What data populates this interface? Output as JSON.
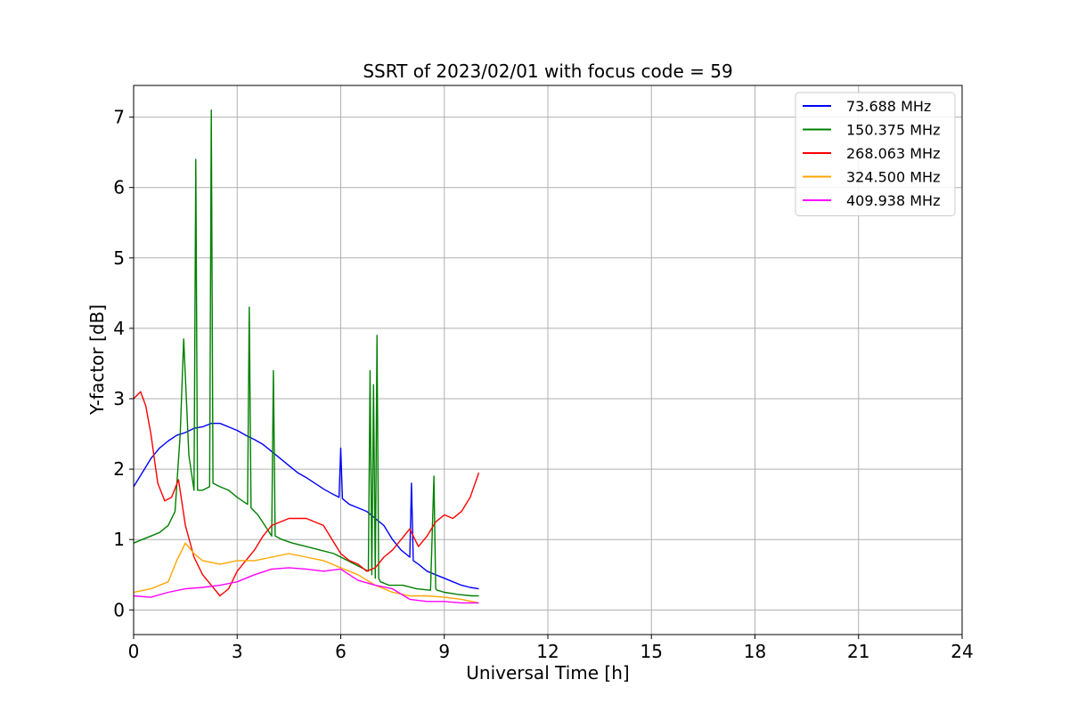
{
  "chart_data": {
    "type": "line",
    "title": "SSRT of 2023/02/01 with focus code = 59",
    "xlabel": "Universal Time [h]",
    "ylabel": "Y-factor [dB]",
    "xlim": [
      0,
      24
    ],
    "ylim": [
      -0.35,
      7.45
    ],
    "xticks": [
      0,
      3,
      6,
      9,
      12,
      15,
      18,
      21,
      24
    ],
    "xtick_labels": [
      "0",
      "3",
      "6",
      "9",
      "12",
      "15",
      "18",
      "21",
      "24"
    ],
    "yticks": [
      0,
      1,
      2,
      3,
      4,
      5,
      6,
      7
    ],
    "ytick_labels": [
      "0",
      "1",
      "2",
      "3",
      "4",
      "5",
      "6",
      "7"
    ],
    "grid": true,
    "legend_position": "top-right",
    "series": [
      {
        "name": " 73.688 MHz",
        "color": "#0000ff",
        "x": [
          0,
          0.25,
          0.5,
          0.75,
          1,
          1.25,
          1.5,
          1.75,
          2,
          2.25,
          2.5,
          2.75,
          3,
          3.25,
          3.5,
          3.75,
          4,
          4.25,
          4.5,
          4.75,
          5,
          5.25,
          5.5,
          5.75,
          5.95,
          6.0,
          6.05,
          6.25,
          6.5,
          6.75,
          7,
          7.25,
          7.5,
          7.75,
          8,
          8.05,
          8.1,
          8.25,
          8.5,
          8.75,
          9,
          9.25,
          9.5,
          9.75,
          10
        ],
        "y": [
          1.75,
          1.95,
          2.15,
          2.3,
          2.4,
          2.48,
          2.52,
          2.58,
          2.6,
          2.65,
          2.65,
          2.6,
          2.55,
          2.48,
          2.42,
          2.35,
          2.25,
          2.15,
          2.05,
          1.95,
          1.88,
          1.8,
          1.72,
          1.65,
          1.6,
          2.3,
          1.58,
          1.5,
          1.45,
          1.4,
          1.3,
          1.2,
          1.0,
          0.85,
          0.75,
          1.8,
          0.7,
          0.65,
          0.55,
          0.5,
          0.45,
          0.4,
          0.35,
          0.32,
          0.3
        ]
      },
      {
        "name": "150.375 MHz",
        "color": "#008000",
        "x": [
          0,
          0.25,
          0.5,
          0.75,
          1,
          1.2,
          1.35,
          1.45,
          1.6,
          1.75,
          1.8,
          1.85,
          2.0,
          2.2,
          2.25,
          2.3,
          2.5,
          2.75,
          3,
          3.3,
          3.35,
          3.4,
          3.6,
          3.8,
          4.0,
          4.05,
          4.1,
          4.3,
          4.6,
          5.0,
          5.4,
          5.8,
          6.2,
          6.6,
          6.8,
          6.85,
          6.9,
          6.95,
          7.0,
          7.05,
          7.1,
          7.15,
          7.4,
          7.8,
          8.2,
          8.6,
          8.7,
          8.75,
          8.8,
          9.0,
          9.4,
          9.8,
          10
        ],
        "y": [
          0.95,
          1.0,
          1.05,
          1.1,
          1.2,
          1.4,
          2.5,
          3.85,
          2.2,
          1.7,
          6.4,
          1.7,
          1.7,
          1.75,
          7.1,
          1.8,
          1.75,
          1.7,
          1.6,
          1.5,
          4.3,
          1.45,
          1.35,
          1.2,
          1.05,
          3.4,
          1.05,
          1.0,
          0.95,
          0.9,
          0.85,
          0.8,
          0.7,
          0.6,
          0.55,
          3.4,
          0.5,
          3.2,
          0.45,
          3.9,
          0.45,
          0.4,
          0.35,
          0.35,
          0.3,
          0.28,
          1.9,
          0.3,
          0.28,
          0.25,
          0.22,
          0.2,
          0.2
        ]
      },
      {
        "name": "268.063 MHz",
        "color": "#ff0000",
        "x": [
          0,
          0.2,
          0.35,
          0.5,
          0.7,
          0.9,
          1.1,
          1.3,
          1.5,
          1.75,
          2.0,
          2.25,
          2.5,
          2.75,
          3.0,
          3.25,
          3.5,
          3.75,
          4.0,
          4.5,
          5.0,
          5.5,
          5.75,
          6.0,
          6.25,
          6.5,
          6.75,
          7.0,
          7.25,
          7.5,
          7.75,
          8.0,
          8.25,
          8.5,
          8.75,
          9.0,
          9.25,
          9.5,
          9.75,
          10
        ],
        "y": [
          3.0,
          3.1,
          2.9,
          2.5,
          1.8,
          1.55,
          1.6,
          1.85,
          1.2,
          0.75,
          0.5,
          0.35,
          0.2,
          0.3,
          0.55,
          0.7,
          0.85,
          1.05,
          1.2,
          1.3,
          1.3,
          1.2,
          1.0,
          0.8,
          0.7,
          0.65,
          0.55,
          0.6,
          0.75,
          0.85,
          1.0,
          1.15,
          0.9,
          1.05,
          1.25,
          1.35,
          1.3,
          1.4,
          1.6,
          1.95
        ]
      },
      {
        "name": "324.500 MHz",
        "color": "#ffa500",
        "x": [
          0,
          0.5,
          1.0,
          1.25,
          1.5,
          1.75,
          2.0,
          2.5,
          3.0,
          3.5,
          4.0,
          4.5,
          5.0,
          5.5,
          6.0,
          6.5,
          7.0,
          7.5,
          8.0,
          8.5,
          9.0,
          9.5,
          10
        ],
        "y": [
          0.25,
          0.3,
          0.4,
          0.7,
          0.95,
          0.8,
          0.7,
          0.65,
          0.7,
          0.7,
          0.75,
          0.8,
          0.75,
          0.7,
          0.6,
          0.5,
          0.35,
          0.25,
          0.2,
          0.2,
          0.18,
          0.15,
          0.1
        ]
      },
      {
        "name": "409.938 MHz",
        "color": "#ff00ff",
        "x": [
          0,
          0.5,
          1.0,
          1.5,
          2.0,
          2.5,
          3.0,
          3.5,
          4.0,
          4.5,
          5.0,
          5.5,
          6.0,
          6.5,
          7.0,
          7.5,
          8.0,
          8.5,
          9.0,
          9.5,
          10
        ],
        "y": [
          0.2,
          0.18,
          0.25,
          0.3,
          0.32,
          0.35,
          0.4,
          0.5,
          0.58,
          0.6,
          0.58,
          0.55,
          0.58,
          0.42,
          0.35,
          0.3,
          0.15,
          0.12,
          0.12,
          0.1,
          0.1
        ]
      }
    ]
  }
}
